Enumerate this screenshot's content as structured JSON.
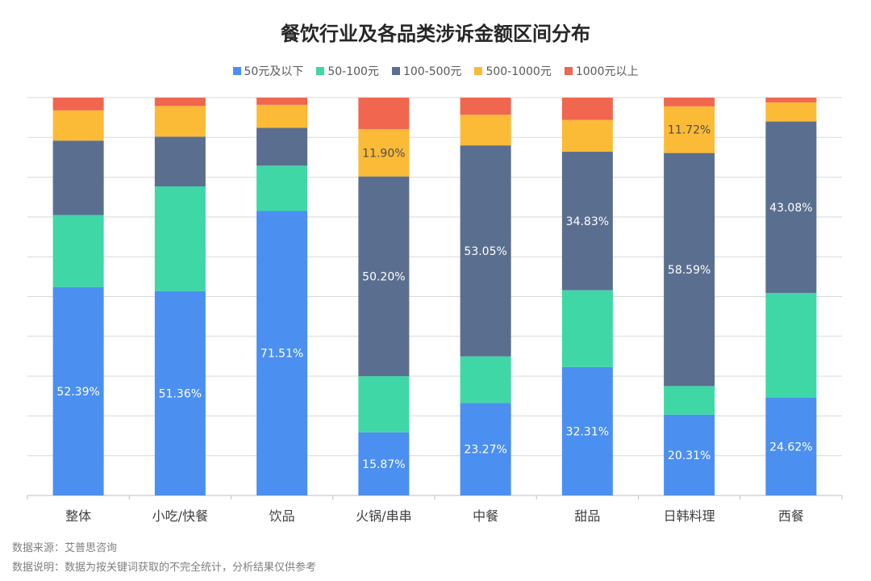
{
  "chart_data": {
    "type": "bar",
    "stacked": true,
    "normalized": true,
    "title": "餐饮行业及各品类涉诉金额区间分布",
    "categories": [
      "整体",
      "小吃/快餐",
      "饮品",
      "火锅/串串",
      "中餐",
      "甜品",
      "日韩料理",
      "西餐"
    ],
    "series": [
      {
        "name": "50元及以下",
        "color": "#4b8ff0",
        "values": [
          52.39,
          51.36,
          71.51,
          15.87,
          23.27,
          32.31,
          20.31,
          24.62
        ],
        "labels": [
          "52.39%",
          "51.36%",
          "71.51%",
          "15.87%",
          "23.27%",
          "32.31%",
          "20.31%",
          "24.62%"
        ]
      },
      {
        "name": "50-100元",
        "color": "#3fd7a6",
        "values": [
          18.1,
          26.3,
          11.4,
          14.1,
          11.7,
          19.3,
          7.2,
          26.3
        ],
        "labels": [
          "",
          "",
          "",
          "",
          "",
          "",
          "",
          ""
        ]
      },
      {
        "name": "100-500元",
        "color": "#5a6e8f",
        "values": [
          18.7,
          12.5,
          9.5,
          50.2,
          53.05,
          34.83,
          58.59,
          43.08
        ],
        "labels": [
          "",
          "",
          "",
          "50.20%",
          "53.05%",
          "34.83%",
          "58.59%",
          "43.08%"
        ]
      },
      {
        "name": "500-1000元",
        "color": "#fbbb37",
        "values": [
          7.6,
          7.7,
          5.8,
          11.9,
          7.7,
          8.0,
          11.72,
          4.8
        ],
        "labels": [
          "",
          "",
          "",
          "11.90%",
          "",
          "",
          "11.72%",
          ""
        ]
      },
      {
        "name": "1000元以上",
        "color": "#f0664f",
        "values": [
          3.2,
          2.1,
          1.8,
          7.9,
          4.3,
          5.6,
          2.2,
          1.2
        ],
        "labels": [
          "",
          "",
          "",
          "",
          "",
          "",
          "",
          ""
        ]
      }
    ],
    "ylim": [
      0,
      100
    ],
    "gridlines": true,
    "legend_position": "top-center",
    "xlabel": "",
    "ylabel": ""
  },
  "footer": {
    "source": "数据来源：艾普思咨询",
    "note": "数据说明：数据为按关键词获取的不完全统计，分析结果仅供参考"
  }
}
